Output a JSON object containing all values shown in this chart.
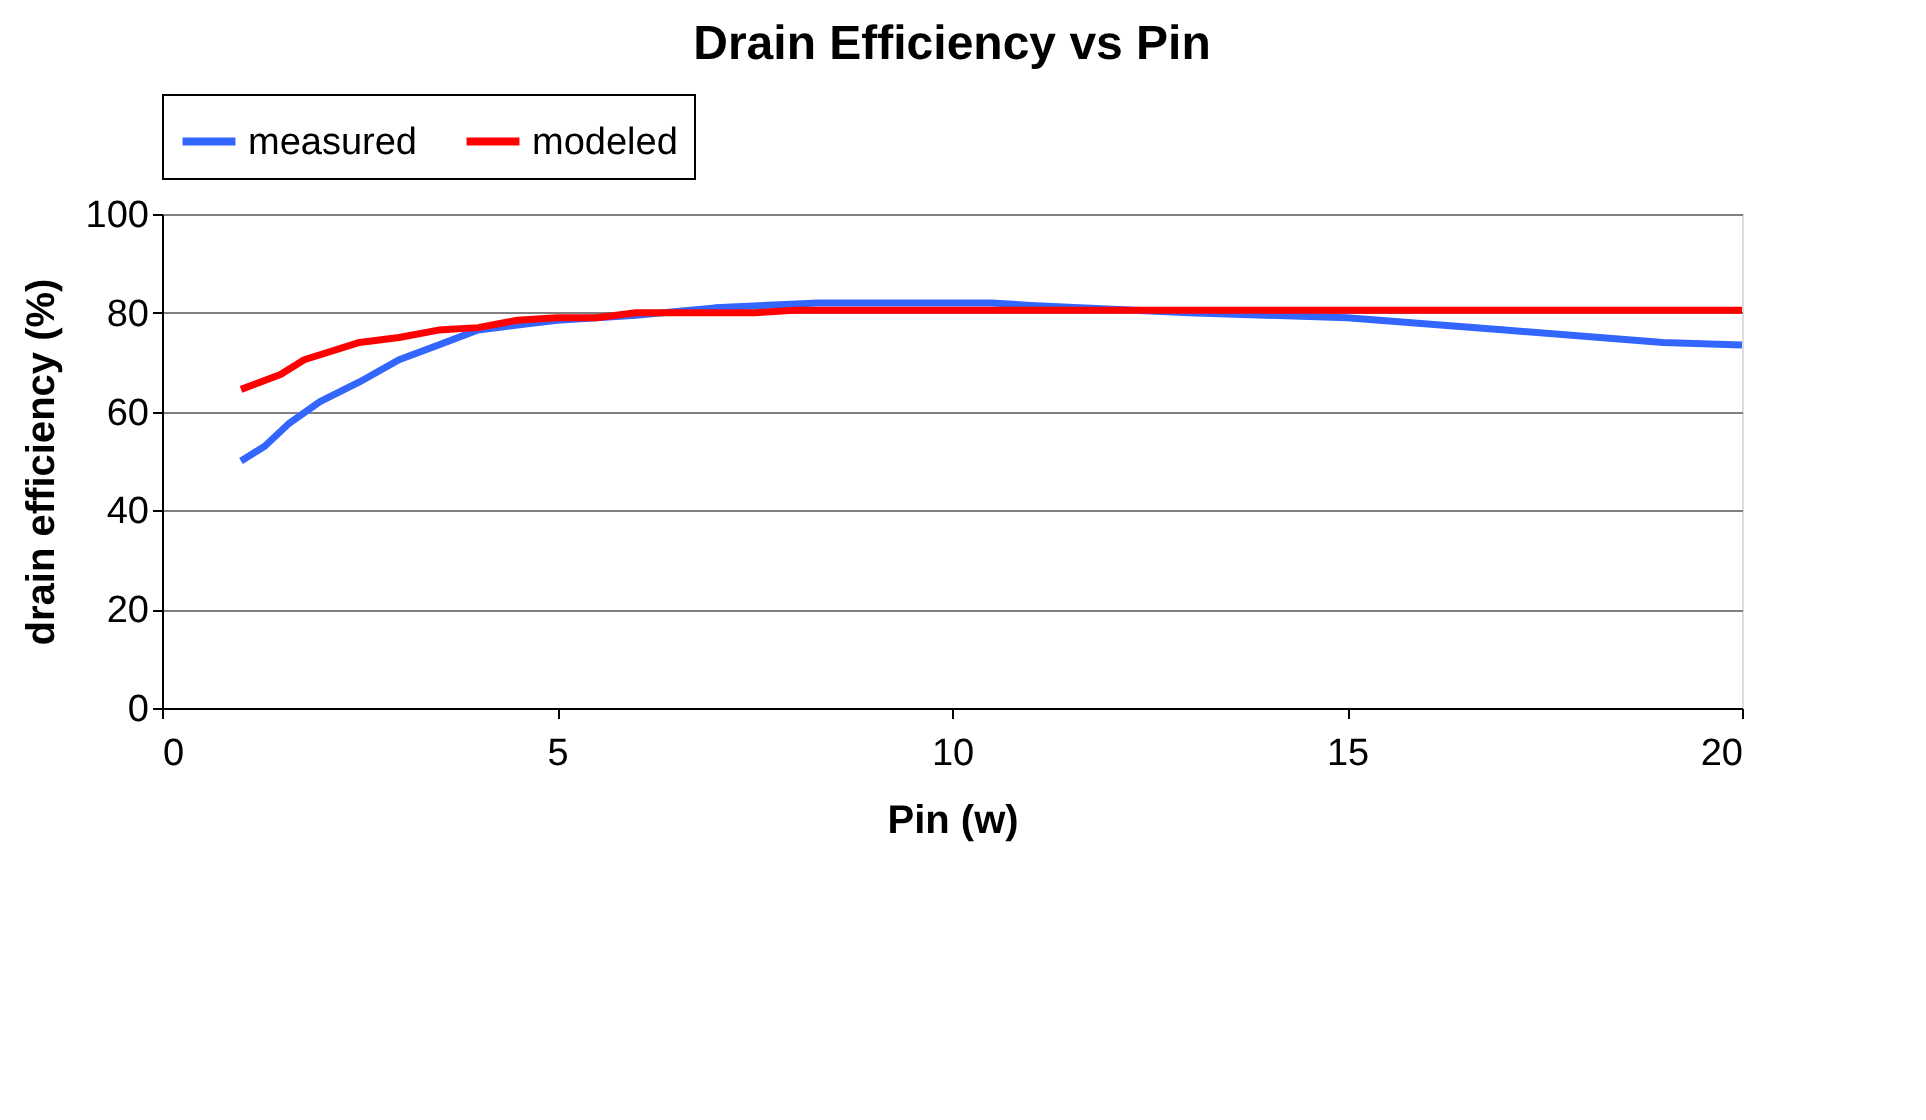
{
  "chart_data": {
    "type": "line",
    "title": "Drain Efficiency vs Pin",
    "xlabel": "Pin (w)",
    "ylabel": "drain efficiency (%)",
    "xlim": [
      0,
      20
    ],
    "xticks": [
      0,
      5,
      10,
      15,
      20
    ],
    "ylim": [
      0,
      100
    ],
    "yticks": [
      0,
      20,
      40,
      60,
      80,
      100
    ],
    "grid": "y",
    "legend": "top",
    "marker": "none",
    "line_style": "solid",
    "series": [
      {
        "name": "measured",
        "color": "#3366ff",
        "x": [
          1,
          1.3,
          1.6,
          2,
          2.5,
          3,
          3.5,
          4,
          4.5,
          5,
          6,
          7,
          8.3,
          10.5,
          11,
          13,
          15,
          17,
          19,
          20
        ],
        "values": [
          50,
          53,
          57.5,
          62,
          66,
          70.5,
          73.5,
          76.5,
          77.5,
          78.5,
          79.5,
          81,
          82,
          82,
          81.5,
          80,
          79,
          76.5,
          74,
          73.5
        ]
      },
      {
        "name": "modeled",
        "color": "#ff0000",
        "x": [
          1,
          1.5,
          1.8,
          2.5,
          3,
          3.5,
          4,
          4.5,
          5,
          5.5,
          6,
          7.5,
          8,
          10,
          20
        ],
        "values": [
          64.5,
          67.5,
          70.5,
          74,
          75,
          76.5,
          77,
          78.5,
          79,
          79,
          80,
          80,
          80.5,
          80.5,
          80.5
        ]
      }
    ]
  }
}
